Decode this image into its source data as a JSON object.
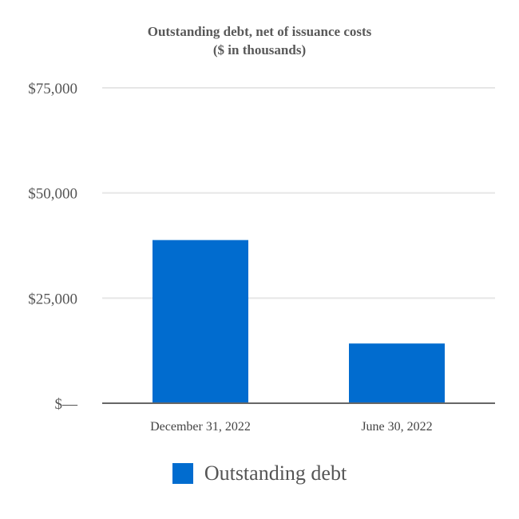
{
  "chart_data": {
    "type": "bar",
    "title": "Outstanding debt, net of issuance costs",
    "subtitle": "($ in thousands)",
    "categories": [
      "December 31, 2022",
      "June 30, 2022"
    ],
    "series": [
      {
        "name": "Outstanding debt",
        "values": [
          38800,
          14200
        ],
        "color": "#016ccf"
      }
    ],
    "ylim": [
      0,
      75000
    ],
    "yticks": [
      0,
      25000,
      50000,
      75000
    ],
    "ytick_labels": [
      "$—",
      "$25,000",
      "$50,000",
      "$75,000"
    ],
    "grid": true,
    "legend": "bottom-center",
    "xlabel": "",
    "ylabel": ""
  }
}
